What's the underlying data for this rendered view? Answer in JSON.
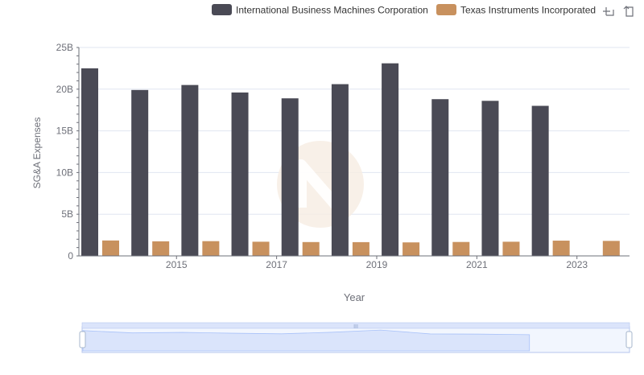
{
  "chart_data": {
    "type": "bar",
    "title": "",
    "xlabel": "Year",
    "ylabel": "SG&A Expenses",
    "ylim": [
      0,
      25000000000
    ],
    "yticks": [
      {
        "value": 0,
        "label": "0"
      },
      {
        "value": 5000000000,
        "label": "5B"
      },
      {
        "value": 10000000000,
        "label": "10B"
      },
      {
        "value": 15000000000,
        "label": "15B"
      },
      {
        "value": 20000000000,
        "label": "20B"
      },
      {
        "value": 25000000000,
        "label": "25B"
      }
    ],
    "x": [
      2014,
      2015,
      2016,
      2017,
      2018,
      2019,
      2020,
      2021,
      2022,
      2023,
      2024
    ],
    "xtick_labels": [
      "2015",
      "2017",
      "2019",
      "2021",
      "2023"
    ],
    "series": [
      {
        "name": "International Business Machines Corporation",
        "color": "#4a4a55",
        "values": [
          22500000000,
          19900000000,
          20500000000,
          19600000000,
          18900000000,
          20600000000,
          23100000000,
          18800000000,
          18600000000,
          18000000000,
          null
        ]
      },
      {
        "name": "Texas Instruments Incorporated",
        "color": "#c8915e",
        "values": [
          1850000000,
          1750000000,
          1770000000,
          1700000000,
          1660000000,
          1650000000,
          1620000000,
          1670000000,
          1700000000,
          1830000000,
          1800000000
        ]
      }
    ],
    "grid": true,
    "legend_position": "top-right"
  },
  "toolbox": {
    "zoom_icon": "zoom-icon",
    "restore_icon": "restore-icon"
  },
  "colors": {
    "axis": "#6e7079",
    "grid": "#e0e6f1",
    "slider_fill": "#dbe4fb",
    "slider_border": "#b5c6ee"
  }
}
